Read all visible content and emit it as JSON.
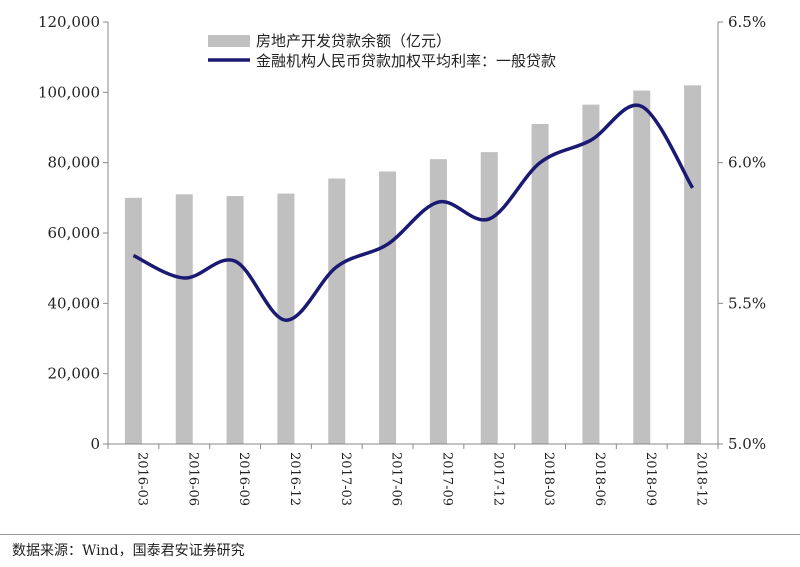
{
  "chart_data": {
    "type": "bar+line",
    "categories": [
      "2016-03",
      "2016-06",
      "2016-09",
      "2016-12",
      "2017-03",
      "2017-06",
      "2017-09",
      "2017-12",
      "2018-03",
      "2018-06",
      "2018-09",
      "2018-12"
    ],
    "series": [
      {
        "name": "房地产开发贷款余额（亿元）",
        "type": "bar",
        "axis": "left",
        "color": "#c0c0c0",
        "values": [
          70000,
          71000,
          70500,
          71200,
          75500,
          77500,
          81000,
          83000,
          91000,
          96500,
          100500,
          102000
        ]
      },
      {
        "name": "金融机构人民币贷款加权平均利率：一般贷款",
        "type": "line",
        "axis": "right",
        "color": "#1b1a73",
        "values": [
          5.67,
          5.59,
          5.65,
          5.44,
          5.63,
          5.71,
          5.86,
          5.8,
          6.0,
          6.08,
          6.2,
          5.91
        ]
      }
    ],
    "left_axis": {
      "ylim": [
        0,
        120000
      ],
      "ticks": [
        "0",
        "20,000",
        "40,000",
        "60,000",
        "80,000",
        "100,000",
        "120,000"
      ]
    },
    "right_axis": {
      "ylim": [
        5.0,
        6.5
      ],
      "ticks": [
        "5.0%",
        "5.5%",
        "6.0%",
        "6.5%"
      ]
    },
    "grid": false,
    "legend_position": "top-center"
  },
  "source_note": "数据来源：Wind，国泰君安证券研究"
}
